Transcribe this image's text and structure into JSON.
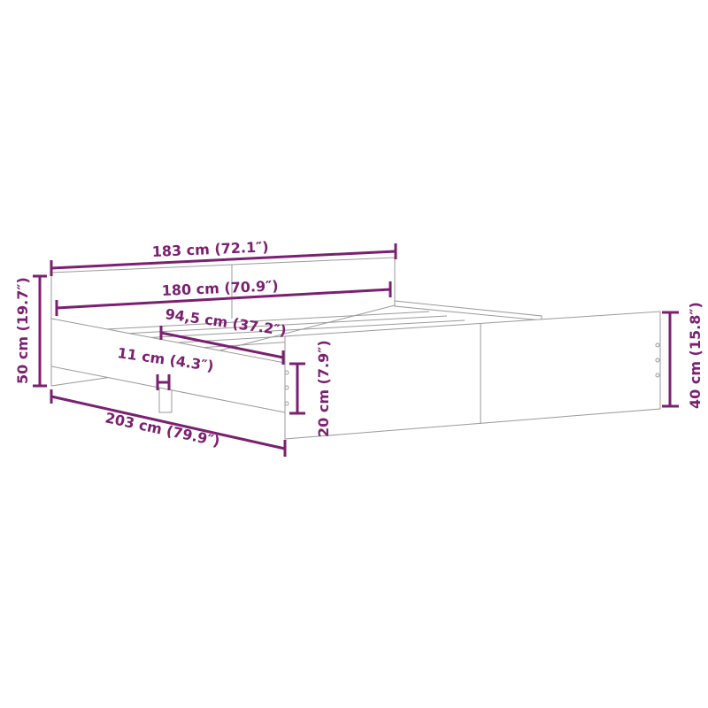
{
  "accent_color": "#7b2070",
  "dimensions": {
    "headboard_width": "183 cm (72.1″)",
    "inner_width": "180 cm (70.9″)",
    "center_to_side": "94,5 cm (37.2″)",
    "leg_width": "11 cm (4.3″)",
    "headboard_height": "50 cm (19.7″)",
    "length": "203 cm (79.9″)",
    "underbed_clearance": "20 cm (7.9″)",
    "footboard_height": "40 cm (15.8″)"
  }
}
